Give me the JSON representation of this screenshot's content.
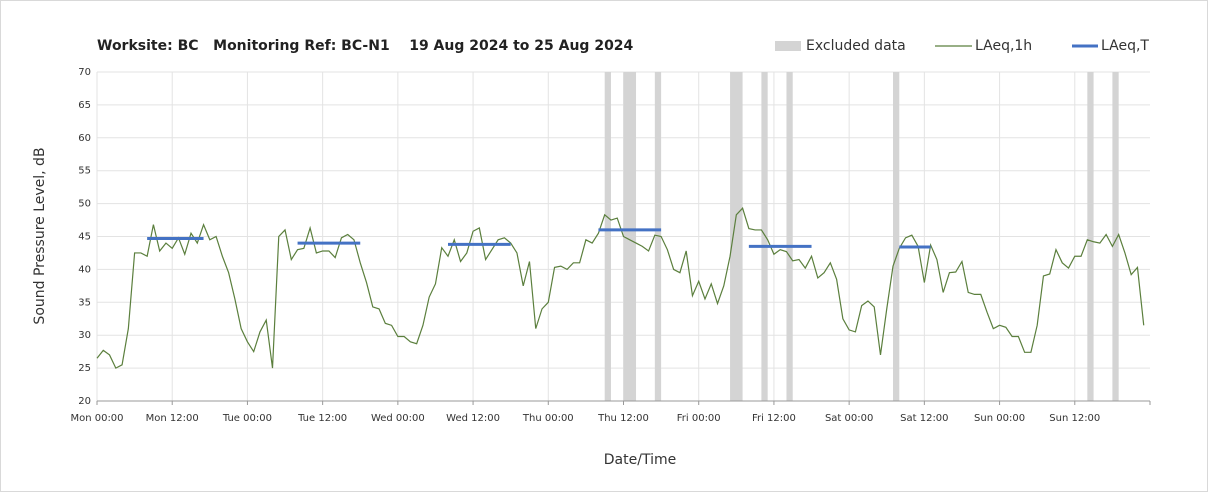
{
  "chart_data": {
    "type": "line",
    "title": "Worksite: BC   Monitoring Ref: BC-N1    19 Aug 2024 to 25 Aug 2024",
    "xlabel": "Date/Time",
    "ylabel": "Sound Pressure Level, dB",
    "xlim": [
      0,
      168
    ],
    "ylim": [
      20,
      70
    ],
    "yticks": [
      20,
      25,
      30,
      35,
      40,
      45,
      50,
      55,
      60,
      65,
      70
    ],
    "xticks": [
      {
        "value": 0,
        "label": "Mon 00:00"
      },
      {
        "value": 12,
        "label": "Mon 12:00"
      },
      {
        "value": 24,
        "label": "Tue 00:00"
      },
      {
        "value": 36,
        "label": "Tue 12:00"
      },
      {
        "value": 48,
        "label": "Wed 00:00"
      },
      {
        "value": 60,
        "label": "Wed 12:00"
      },
      {
        "value": 72,
        "label": "Thu 00:00"
      },
      {
        "value": 84,
        "label": "Thu 12:00"
      },
      {
        "value": 96,
        "label": "Fri 00:00"
      },
      {
        "value": 108,
        "label": "Fri 12:00"
      },
      {
        "value": 120,
        "label": "Sat 00:00"
      },
      {
        "value": 132,
        "label": "Sat 12:00"
      },
      {
        "value": 144,
        "label": "Sun 00:00"
      },
      {
        "value": 156,
        "label": "Sun 12:00"
      }
    ],
    "grid": true,
    "legend": "top-right",
    "excluded": {
      "name": "Excluded data",
      "color": "#d4d4d4",
      "bands": [
        [
          81,
          82
        ],
        [
          84,
          86
        ],
        [
          89,
          90
        ],
        [
          101,
          103
        ],
        [
          106,
          107
        ],
        [
          110,
          111
        ],
        [
          127,
          128
        ],
        [
          158,
          159
        ],
        [
          162,
          163
        ]
      ]
    },
    "series": [
      {
        "name": "LAeq,1h",
        "color": "#5b7f3d",
        "x": [
          0,
          1,
          2,
          3,
          4,
          5,
          6,
          7,
          8,
          9,
          10,
          11,
          12,
          13,
          14,
          15,
          16,
          17,
          18,
          19,
          20,
          21,
          22,
          23,
          24,
          25,
          26,
          27,
          28,
          29,
          30,
          31,
          32,
          33,
          34,
          35,
          36,
          37,
          38,
          39,
          40,
          41,
          42,
          43,
          44,
          45,
          46,
          47,
          48,
          49,
          50,
          51,
          52,
          53,
          54,
          55,
          56,
          57,
          58,
          59,
          60,
          61,
          62,
          63,
          64,
          65,
          66,
          67,
          68,
          69,
          70,
          71,
          72,
          73,
          74,
          75,
          76,
          77,
          78,
          79,
          80,
          81,
          82,
          83,
          84,
          85,
          86,
          87,
          88,
          89,
          90,
          91,
          92,
          93,
          94,
          95,
          96,
          97,
          98,
          99,
          100,
          101,
          102,
          103,
          104,
          105,
          106,
          107,
          108,
          109,
          110,
          111,
          112,
          113,
          114,
          115,
          116,
          117,
          118,
          119,
          120,
          121,
          122,
          123,
          124,
          125,
          126,
          127,
          128,
          129,
          130,
          131,
          132,
          133,
          134,
          135,
          136,
          137,
          138,
          139,
          140,
          141,
          142,
          143,
          144,
          145,
          146,
          147,
          148,
          149,
          150,
          151,
          152,
          153,
          154,
          155,
          156,
          157,
          158,
          159,
          160,
          161,
          162,
          163,
          164,
          165,
          166,
          167
        ],
        "values": [
          26.5,
          27.7,
          27,
          25,
          25.5,
          31,
          42.5,
          42.5,
          42,
          46.8,
          42.8,
          44,
          43.2,
          44.8,
          42.3,
          45.5,
          44,
          46.8,
          44.5,
          45,
          42,
          39.5,
          35.5,
          31,
          29,
          27.5,
          30.5,
          32.3,
          25,
          45,
          46,
          41.5,
          43,
          43.2,
          46.3,
          42.5,
          42.8,
          42.8,
          41.8,
          44.8,
          45.3,
          44.5,
          41,
          38,
          34.3,
          34,
          31.8,
          31.5,
          29.8,
          29.8,
          29,
          28.7,
          31.5,
          35.8,
          37.8,
          43.3,
          42,
          44.5,
          41.2,
          42.5,
          45.8,
          46.3,
          41.5,
          43,
          44.5,
          44.8,
          44,
          42.5,
          37.5,
          41.2,
          31,
          34,
          35,
          40.3,
          40.5,
          40,
          41,
          41,
          44.5,
          44,
          45.5,
          48.3,
          47.5,
          47.8,
          45,
          44.5,
          44,
          43.5,
          42.8,
          45.2,
          45,
          43,
          40,
          39.5,
          42.8,
          36,
          38.2,
          35.5,
          37.8,
          34.8,
          37.5,
          42,
          48.3,
          49.3,
          46.2,
          46,
          46,
          44.5,
          42.3,
          43,
          42.7,
          41.3,
          41.5,
          40.2,
          42,
          38.7,
          39.5,
          41,
          38.5,
          32.5,
          30.8,
          30.5,
          34.5,
          35.2,
          34.3,
          27,
          34,
          40.5,
          43.2,
          44.8,
          45.2,
          43.5,
          38,
          43.7,
          41.5,
          36.5,
          39.5,
          39.6,
          41.2,
          36.5,
          36.2,
          36.2,
          33.5,
          31,
          31.5,
          31.2,
          29.8,
          29.8,
          27.4,
          27.4,
          31.5,
          39,
          39.3,
          43,
          41,
          40.2,
          42,
          42,
          44.5,
          44.2,
          44,
          45.3,
          43.5,
          45.3,
          42.5,
          39.2,
          40.3,
          31.5
        ]
      },
      {
        "name": "LAeq,T",
        "color": "#4472c4",
        "segments": [
          {
            "start": 8,
            "end": 17,
            "value": 44.7
          },
          {
            "start": 32,
            "end": 42,
            "value": 44
          },
          {
            "start": 56,
            "end": 66,
            "value": 43.8
          },
          {
            "start": 80,
            "end": 90,
            "value": 46
          },
          {
            "start": 104,
            "end": 114,
            "value": 43.5
          },
          {
            "start": 128,
            "end": 133,
            "value": 43.4
          }
        ]
      }
    ]
  }
}
